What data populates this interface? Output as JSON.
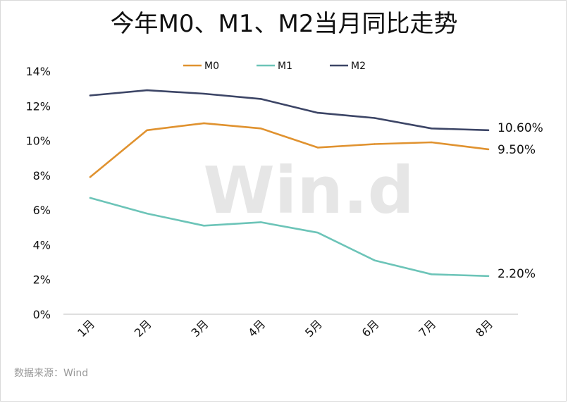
{
  "chart_data": {
    "type": "line",
    "title": "今年M0、M1、M2当月同比走势",
    "categories": [
      "1月",
      "2月",
      "3月",
      "4月",
      "5月",
      "6月",
      "7月",
      "8月"
    ],
    "ylim": [
      0,
      14
    ],
    "yticks": [
      0,
      2,
      4,
      6,
      8,
      10,
      12,
      14
    ],
    "ytick_labels": [
      "0%",
      "2%",
      "4%",
      "6%",
      "8%",
      "10%",
      "12%",
      "14%"
    ],
    "xlabel": "",
    "ylabel": "",
    "grid": false,
    "legend_position": "top-center",
    "series": [
      {
        "name": "M0",
        "color": "#e0922f",
        "values": [
          7.9,
          10.6,
          11.0,
          10.7,
          9.6,
          9.8,
          9.9,
          9.5
        ],
        "end_label": "9.50%"
      },
      {
        "name": "M1",
        "color": "#6cc4b8",
        "values": [
          6.7,
          5.8,
          5.1,
          5.3,
          4.7,
          3.1,
          2.3,
          2.2
        ],
        "end_label": "2.20%"
      },
      {
        "name": "M2",
        "color": "#3c4566",
        "values": [
          12.6,
          12.9,
          12.7,
          12.4,
          11.6,
          11.3,
          10.7,
          10.6
        ],
        "end_label": "10.60%"
      }
    ],
    "watermark": "Win.d"
  },
  "source_note": "数据来源：Wind"
}
